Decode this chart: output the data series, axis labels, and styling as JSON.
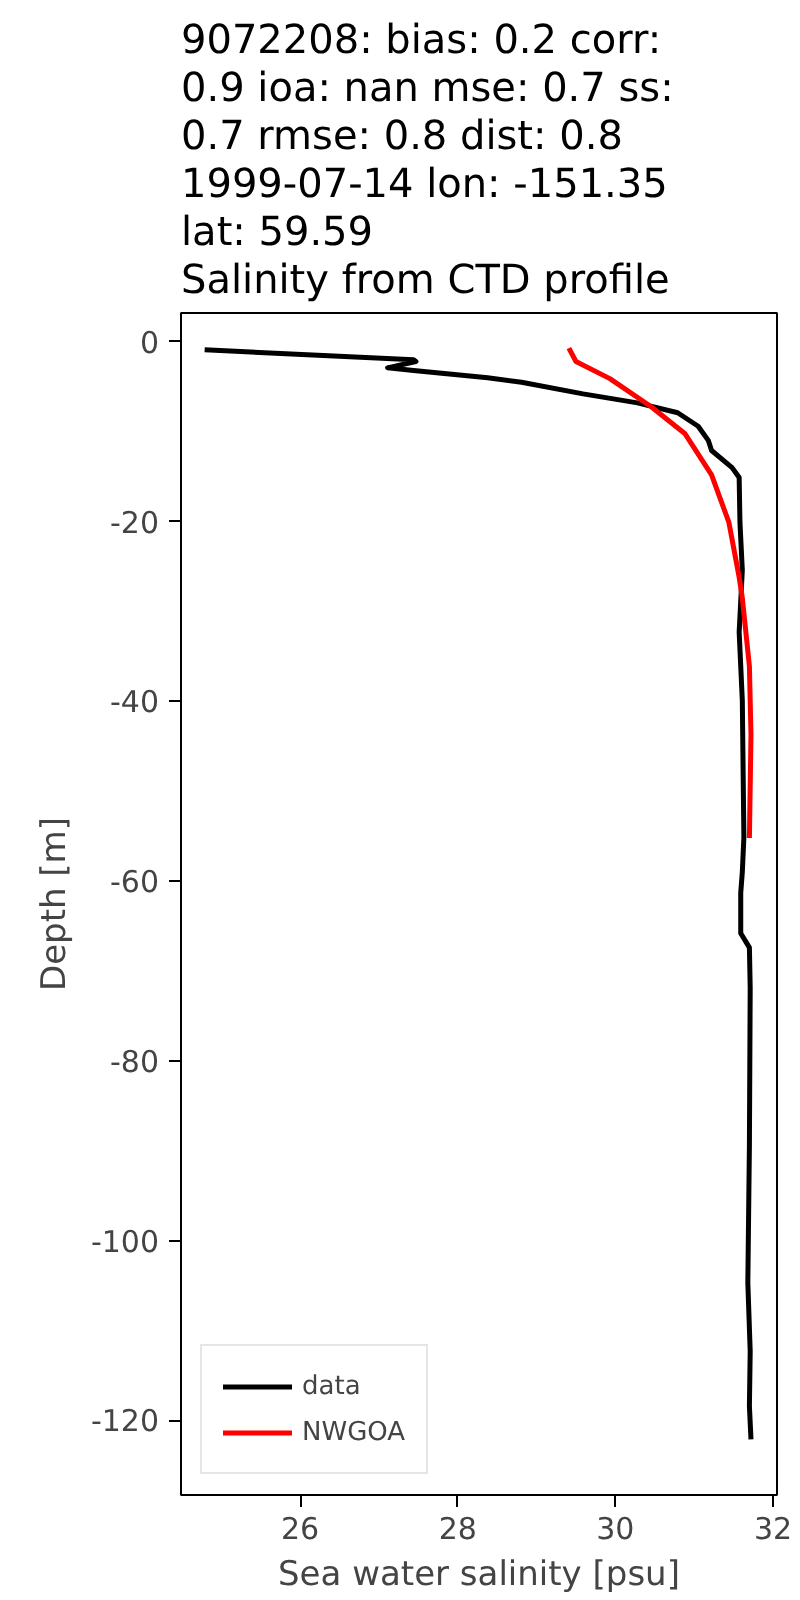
{
  "chart_data": {
    "type": "line",
    "title": "9072208: bias: 0.2  corr:\n0.9  ioa: nan  mse: 0.7  ss:\n0.7  rmse: 0.8  dist: 0.8\n1999-07-14 lon: -151.35\nlat: 59.59\nSalinity from CTD profile",
    "xlabel": "Sea water salinity [psu]",
    "ylabel": "Depth [m]",
    "xlim": [
      24.49,
      32.05
    ],
    "xticks": [
      26,
      28,
      30,
      32
    ],
    "ylim": [
      -128.3,
      3.2
    ],
    "yticks": [
      0,
      -20,
      -40,
      -60,
      -80,
      -100,
      -120
    ],
    "grid": false,
    "legend": "bottom left",
    "series": [
      {
        "name": "data",
        "color": "#000000",
        "x": [
          24.79,
          27.44,
          27.47,
          27.11,
          27.44,
          28.38,
          28.81,
          29.59,
          30.28,
          30.79,
          31.05,
          31.18,
          31.22,
          31.48,
          31.57,
          31.58,
          31.61,
          31.57,
          31.61,
          31.63,
          31.61,
          31.59,
          31.59,
          31.7,
          31.71,
          31.7,
          31.68,
          31.71,
          31.7,
          31.72
        ],
        "values": [
          -0.9,
          -2.0,
          -2.2,
          -2.9,
          -3.2,
          -4.0,
          -4.5,
          -5.8,
          -6.8,
          -7.9,
          -9.4,
          -11.0,
          -12.1,
          -14.0,
          -15.1,
          -20.1,
          -25.4,
          -32.3,
          -39.9,
          -55.1,
          -59.0,
          -61.3,
          -65.8,
          -67.4,
          -71.9,
          -89.4,
          -104.7,
          -112.3,
          -118.4,
          -122.1
        ]
      },
      {
        "name": "NWGOA",
        "color": "#ff0000",
        "x": [
          29.41,
          29.5,
          29.93,
          30.45,
          30.88,
          31.22,
          31.44,
          31.57,
          31.61,
          31.7,
          31.72,
          31.7
        ],
        "values": [
          -0.7,
          -2.2,
          -4.1,
          -7.2,
          -10.2,
          -14.8,
          -20.1,
          -26.2,
          -28.5,
          -36.1,
          -43.7,
          -55.2
        ]
      }
    ]
  }
}
